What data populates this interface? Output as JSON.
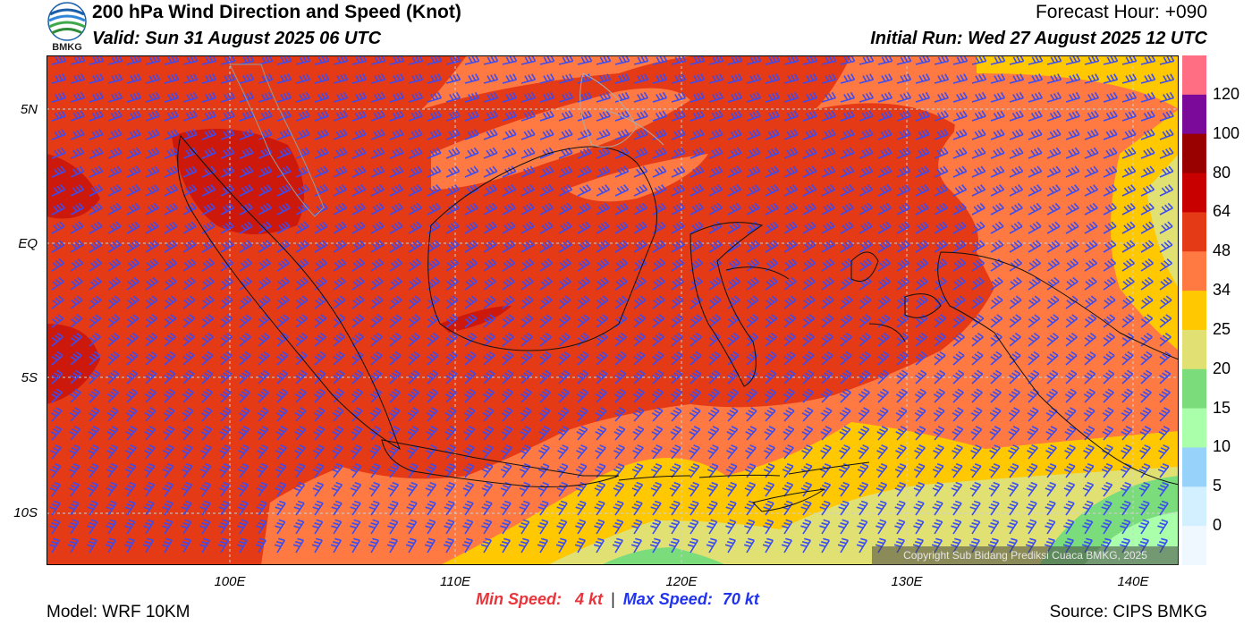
{
  "header": {
    "title": "200 hPa Wind Direction and Speed (Knot)",
    "valid": "Valid: Sun 31 August 2025 06 UTC",
    "forecast_hour": "Forecast Hour: +090",
    "initial_run": "Initial Run: Wed 27 August 2025 12 UTC",
    "logo_text": "BMKG"
  },
  "map": {
    "lat_labels": [
      "5N",
      "EQ",
      "5S",
      "10S"
    ],
    "lon_labels": [
      "100E",
      "110E",
      "120E",
      "130E",
      "140E"
    ],
    "copyright": "Copyright Sub Bidang Prediksi Cuaca BMKG, 2025"
  },
  "legend": {
    "labels": [
      "120",
      "100",
      "80",
      "64",
      "48",
      "34",
      "25",
      "20",
      "15",
      "10",
      "5",
      "0"
    ],
    "colors": [
      "#ff6e82",
      "#7b0a9a",
      "#990000",
      "#c80000",
      "#e43a16",
      "#ff7a42",
      "#ffc800",
      "#e1e173",
      "#7bdc7b",
      "#aaffaa",
      "#96d2fa",
      "#d2f0ff",
      "#f0f8ff"
    ]
  },
  "stats": {
    "min_label": "Min Speed:",
    "min_value": "4 kt",
    "separator": "|",
    "max_label": "Max Speed:",
    "max_value": "70 kt"
  },
  "footer": {
    "model": "Model: WRF 10KM",
    "source": "Source: CIPS BMKG"
  },
  "colors": {
    "barb": "#3b4cf0",
    "coast": "#111111",
    "grid": "#cccccc"
  }
}
